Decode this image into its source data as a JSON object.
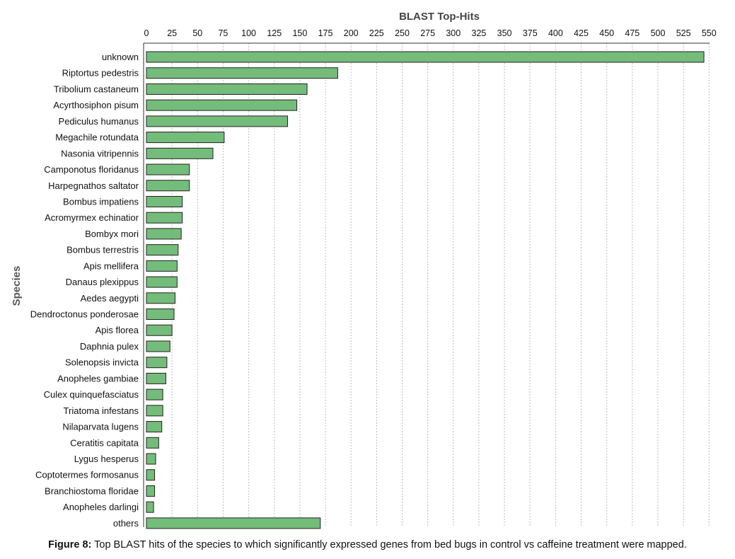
{
  "chart_data": {
    "type": "bar",
    "orientation": "horizontal",
    "title": "BLAST Top-Hits",
    "xlabel": "",
    "ylabel": "Species",
    "xlim": [
      0,
      550
    ],
    "xticks": [
      "0",
      "25",
      "50",
      "75",
      "100",
      "125",
      "150",
      "175",
      "200",
      "225",
      "250",
      "275",
      "300",
      "325",
      "350",
      "375",
      "400",
      "425",
      "450",
      "475",
      "500",
      "525",
      "550"
    ],
    "grid": "vertical dashed",
    "bar_color": "#74bc7a",
    "categories": [
      "unknown",
      "Riptortus pedestris",
      "Tribolium castaneum",
      "Acyrthosiphon pisum",
      "Pediculus humanus",
      "Megachile rotundata",
      "Nasonia vitripennis",
      "Camponotus floridanus",
      "Harpegnathos saltator",
      "Bombus impatiens",
      "Acromyrmex echinatior",
      "Bombyx mori",
      "Bombus terrestris",
      "Apis mellifera",
      "Danaus plexippus",
      "Aedes aegypti",
      "Dendroctonus ponderosae",
      "Apis florea",
      "Daphnia pulex",
      "Solenopsis invicta",
      "Anopheles gambiae",
      "Culex quinquefasciatus",
      "Triatoma infestans",
      "Nilaparvata lugens",
      "Ceratitis capitata",
      "Lygus hesperus",
      "Coptotermes formosanus",
      "Branchiostoma floridae",
      "Anopheles darlingi",
      "others"
    ],
    "values": [
      545,
      187,
      157,
      147,
      138,
      76,
      65,
      42,
      42,
      35,
      35,
      34,
      31,
      30,
      30,
      28,
      27,
      25,
      23,
      20,
      19,
      16,
      16,
      15,
      12,
      9,
      8,
      8,
      7,
      170
    ]
  },
  "caption": {
    "lead": "Figure 8:",
    "text": " Top BLAST hits of the species to which significantly expressed genes from bed bugs in control vs caffeine treatment were mapped."
  }
}
